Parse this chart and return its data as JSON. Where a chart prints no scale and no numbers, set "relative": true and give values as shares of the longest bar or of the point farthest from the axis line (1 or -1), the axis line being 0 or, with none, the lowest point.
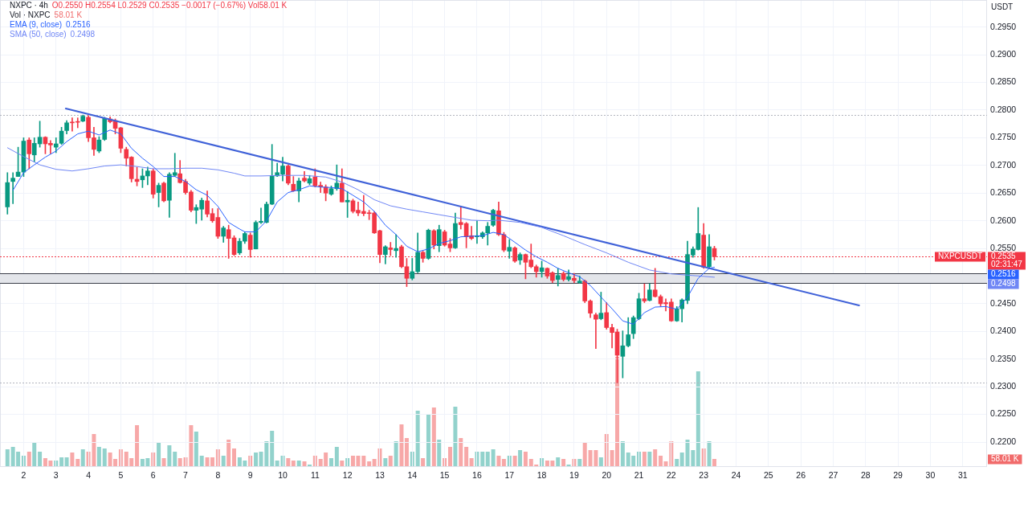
{
  "chart_data": [
    {
      "type": "candlestick",
      "title": "NXPC · 4h",
      "subtitle": "O0.2550 H0.2554 L0.2529 C0.2535 −0.0017 (−0.67%) Vol58.01 K",
      "ylabel": "USDT",
      "x": [
        1.5,
        1.67,
        1.83,
        2,
        2.17,
        2.33,
        2.5,
        2.67,
        2.83,
        3,
        3.17,
        3.33,
        3.5,
        3.67,
        3.83,
        4,
        4.17,
        4.33,
        4.5,
        4.67,
        4.83,
        5,
        5.17,
        5.33,
        5.5,
        5.67,
        5.83,
        6,
        6.17,
        6.33,
        6.5,
        6.67,
        6.83,
        7,
        7.17,
        7.33,
        7.5,
        7.67,
        7.83,
        8,
        8.17,
        8.33,
        8.5,
        8.67,
        8.83,
        9,
        9.17,
        9.33,
        9.5,
        9.67,
        9.83,
        10,
        10.17,
        10.33,
        10.5,
        10.67,
        10.83,
        11,
        11.17,
        11.33,
        11.5,
        11.67,
        11.83,
        12,
        12.17,
        12.33,
        12.5,
        12.67,
        12.83,
        13,
        13.17,
        13.33,
        13.5,
        13.67,
        13.83,
        14,
        14.17,
        14.33,
        14.5,
        14.67,
        14.83,
        15,
        15.17,
        15.33,
        15.5,
        15.67,
        15.83,
        16,
        16.17,
        16.33,
        16.5,
        16.67,
        16.83,
        17,
        17.17,
        17.33,
        17.5,
        17.67,
        17.83,
        18,
        18.17,
        18.33,
        18.5,
        18.67,
        18.83,
        19,
        19.17,
        19.33,
        19.5,
        19.67,
        19.83,
        20,
        20.17,
        20.33,
        20.5,
        20.67,
        20.83,
        21,
        21.17,
        21.33,
        21.5,
        21.67,
        21.83,
        22,
        22.17,
        22.33,
        22.5,
        22.67,
        22.83,
        23,
        23.17,
        23.33
      ],
      "xlim": [
        1.27,
        31.75
      ],
      "xticks": [
        2,
        3,
        4,
        5,
        6,
        7,
        8,
        9,
        10,
        11,
        12,
        13,
        14,
        15,
        16,
        17,
        18,
        19,
        20,
        21,
        22,
        23,
        24,
        25,
        26,
        27,
        28,
        29,
        30,
        31
      ],
      "ylim": [
        0.2155,
        0.2999
      ],
      "yticks": [
        {
          "value": 0.22,
          "label": "0.2200"
        },
        {
          "value": 0.225,
          "label": "0.2250"
        },
        {
          "value": 0.23,
          "label": "0.2300"
        },
        {
          "value": 0.235,
          "label": "0.2350"
        },
        {
          "value": 0.24,
          "label": "0.2400"
        },
        {
          "value": 0.245,
          "label": "0.2450"
        },
        {
          "value": 0.255,
          "label": "0.2550"
        },
        {
          "value": 0.26,
          "label": "0.2600"
        },
        {
          "value": 0.265,
          "label": "0.2650"
        },
        {
          "value": 0.27,
          "label": "0.2700"
        },
        {
          "value": 0.275,
          "label": "0.2750"
        },
        {
          "value": 0.28,
          "label": "0.2800"
        },
        {
          "value": 0.285,
          "label": "0.2850"
        },
        {
          "value": 0.29,
          "label": "0.2900"
        },
        {
          "value": 0.295,
          "label": "0.2950"
        }
      ],
      "ohlc": [
        [
          0.2625,
          0.2687,
          0.2612,
          0.2669
        ],
        [
          0.2671,
          0.2687,
          0.2631,
          0.2677
        ],
        [
          0.268,
          0.2733,
          0.268,
          0.2688
        ],
        [
          0.2688,
          0.275,
          0.268,
          0.2744
        ],
        [
          0.2746,
          0.275,
          0.2694,
          0.2721
        ],
        [
          0.2719,
          0.275,
          0.2706,
          0.274
        ],
        [
          0.2739,
          0.278,
          0.2733,
          0.2751
        ],
        [
          0.2751,
          0.2752,
          0.2721,
          0.2739
        ],
        [
          0.274,
          0.2745,
          0.2721,
          0.2737
        ],
        [
          0.2733,
          0.275,
          0.2723,
          0.2739
        ],
        [
          0.274,
          0.2769,
          0.2738,
          0.2762
        ],
        [
          0.2763,
          0.2781,
          0.2757,
          0.2777
        ],
        [
          0.2778,
          0.2786,
          0.2762,
          0.2777
        ],
        [
          0.2779,
          0.2786,
          0.2768,
          0.2778
        ],
        [
          0.278,
          0.2791,
          0.2779,
          0.2789
        ],
        [
          0.2787,
          0.279,
          0.2743,
          0.275
        ],
        [
          0.275,
          0.2769,
          0.2718,
          0.2729
        ],
        [
          0.2726,
          0.2752,
          0.2723,
          0.2746
        ],
        [
          0.2747,
          0.2787,
          0.2745,
          0.2785
        ],
        [
          0.2784,
          0.2788,
          0.2777,
          0.2779
        ],
        [
          0.2781,
          0.2784,
          0.2757,
          0.2767
        ],
        [
          0.2768,
          0.2769,
          0.2723,
          0.2731
        ],
        [
          0.2729,
          0.2733,
          0.2699,
          0.2713
        ],
        [
          0.2715,
          0.2716,
          0.267,
          0.2676
        ],
        [
          0.2675,
          0.2697,
          0.2663,
          0.2671
        ],
        [
          0.2674,
          0.2694,
          0.266,
          0.2681
        ],
        [
          0.2681,
          0.2697,
          0.2665,
          0.269
        ],
        [
          0.269,
          0.2694,
          0.2641,
          0.2648
        ],
        [
          0.2651,
          0.2668,
          0.2625,
          0.2664
        ],
        [
          0.2668,
          0.267,
          0.2634,
          0.2636
        ],
        [
          0.2637,
          0.2687,
          0.2606,
          0.2684
        ],
        [
          0.2682,
          0.2722,
          0.268,
          0.2687
        ],
        [
          0.2685,
          0.2709,
          0.2668,
          0.2669
        ],
        [
          0.2671,
          0.2675,
          0.2648,
          0.2651
        ],
        [
          0.2652,
          0.2655,
          0.2616,
          0.2619
        ],
        [
          0.2619,
          0.2629,
          0.2595,
          0.2624
        ],
        [
          0.2621,
          0.2641,
          0.2601,
          0.2637
        ],
        [
          0.2636,
          0.2654,
          0.2607,
          0.2612
        ],
        [
          0.2613,
          0.2622,
          0.2597,
          0.26
        ],
        [
          0.2606,
          0.2622,
          0.2568,
          0.2572
        ],
        [
          0.2572,
          0.259,
          0.2561,
          0.2587
        ],
        [
          0.2584,
          0.2592,
          0.2532,
          0.2568
        ],
        [
          0.2569,
          0.2573,
          0.2537,
          0.2539
        ],
        [
          0.2542,
          0.2568,
          0.2539,
          0.2563
        ],
        [
          0.2563,
          0.258,
          0.2559,
          0.2577
        ],
        [
          0.2574,
          0.2578,
          0.2534,
          0.2548
        ],
        [
          0.2549,
          0.26,
          0.2549,
          0.2597
        ],
        [
          0.2597,
          0.2623,
          0.2595,
          0.2599
        ],
        [
          0.2597,
          0.2634,
          0.2596,
          0.263
        ],
        [
          0.263,
          0.2738,
          0.2629,
          0.2681
        ],
        [
          0.2681,
          0.2704,
          0.268,
          0.2687
        ],
        [
          0.2684,
          0.2715,
          0.2672,
          0.2699
        ],
        [
          0.2699,
          0.2701,
          0.2665,
          0.2668
        ],
        [
          0.2666,
          0.268,
          0.2653,
          0.2654
        ],
        [
          0.2654,
          0.2677,
          0.2634,
          0.2672
        ],
        [
          0.2677,
          0.2689,
          0.267,
          0.2672
        ],
        [
          0.2668,
          0.2682,
          0.2665,
          0.2676
        ],
        [
          0.2679,
          0.2694,
          0.2661,
          0.2663
        ],
        [
          0.2664,
          0.267,
          0.2651,
          0.2661
        ],
        [
          0.2661,
          0.2665,
          0.2636,
          0.265
        ],
        [
          0.2648,
          0.2663,
          0.2646,
          0.2658
        ],
        [
          0.2658,
          0.2701,
          0.2655,
          0.2668
        ],
        [
          0.2668,
          0.2694,
          0.2634,
          0.2634
        ],
        [
          0.2634,
          0.2653,
          0.2606,
          0.2637
        ],
        [
          0.2636,
          0.2639,
          0.2614,
          0.2617
        ],
        [
          0.2619,
          0.2634,
          0.2609,
          0.2614
        ],
        [
          0.2617,
          0.2646,
          0.2609,
          0.2613
        ],
        [
          0.2614,
          0.2619,
          0.2602,
          0.2613
        ],
        [
          0.2614,
          0.2617,
          0.2577,
          0.2578
        ],
        [
          0.2582,
          0.2583,
          0.2524,
          0.2539
        ],
        [
          0.2539,
          0.2555,
          0.2522,
          0.2553
        ],
        [
          0.2551,
          0.2561,
          0.2537,
          0.2548
        ],
        [
          0.2546,
          0.2575,
          0.2534,
          0.255
        ],
        [
          0.2553,
          0.2556,
          0.2515,
          0.2517
        ],
        [
          0.2517,
          0.2532,
          0.2481,
          0.2496
        ],
        [
          0.2496,
          0.2532,
          0.2493,
          0.2508
        ],
        [
          0.2508,
          0.2578,
          0.2506,
          0.2543
        ],
        [
          0.2543,
          0.2545,
          0.2525,
          0.2532
        ],
        [
          0.2532,
          0.2585,
          0.253,
          0.2583
        ],
        [
          0.2582,
          0.2584,
          0.2549,
          0.2556
        ],
        [
          0.2555,
          0.2592,
          0.2544,
          0.2584
        ],
        [
          0.258,
          0.2583,
          0.2554,
          0.2556
        ],
        [
          0.2558,
          0.2568,
          0.2544,
          0.2551
        ],
        [
          0.2551,
          0.2614,
          0.255,
          0.2595
        ],
        [
          0.2597,
          0.2626,
          0.2585,
          0.2593
        ],
        [
          0.2595,
          0.2597,
          0.2551,
          0.2571
        ],
        [
          0.2573,
          0.259,
          0.2566,
          0.2568
        ],
        [
          0.2571,
          0.26,
          0.2559,
          0.2573
        ],
        [
          0.2571,
          0.258,
          0.2568,
          0.2578
        ],
        [
          0.2578,
          0.2597,
          0.2556,
          0.259
        ],
        [
          0.2592,
          0.2621,
          0.259,
          0.2619
        ],
        [
          0.2618,
          0.2634,
          0.2573,
          0.2575
        ],
        [
          0.2575,
          0.2579,
          0.2544,
          0.2547
        ],
        [
          0.2545,
          0.2566,
          0.2532,
          0.2552
        ],
        [
          0.2551,
          0.2553,
          0.2525,
          0.2527
        ],
        [
          0.2529,
          0.2542,
          0.2521,
          0.2539
        ],
        [
          0.2539,
          0.254,
          0.2495,
          0.2525
        ],
        [
          0.2529,
          0.2558,
          0.2515,
          0.2517
        ],
        [
          0.2517,
          0.252,
          0.2498,
          0.2508
        ],
        [
          0.2508,
          0.2527,
          0.2498,
          0.2515
        ],
        [
          0.2514,
          0.2515,
          0.2496,
          0.25
        ],
        [
          0.2506,
          0.2508,
          0.2488,
          0.2492
        ],
        [
          0.2494,
          0.2514,
          0.2482,
          0.2501
        ],
        [
          0.2505,
          0.2508,
          0.2491,
          0.2494
        ],
        [
          0.2494,
          0.2511,
          0.2491,
          0.2499
        ],
        [
          0.2496,
          0.2505,
          0.2488,
          0.2492
        ],
        [
          0.2488,
          0.25,
          0.2487,
          0.2491
        ],
        [
          0.2491,
          0.2493,
          0.2452,
          0.2455
        ],
        [
          0.2455,
          0.2457,
          0.2425,
          0.2433
        ],
        [
          0.243,
          0.2433,
          0.2369,
          0.2422
        ],
        [
          0.2423,
          0.2471,
          0.2421,
          0.2433
        ],
        [
          0.2434,
          0.2452,
          0.2404,
          0.2407
        ],
        [
          0.2407,
          0.2413,
          0.237,
          0.2398
        ],
        [
          0.2399,
          0.2404,
          0.2307,
          0.2357
        ],
        [
          0.2355,
          0.2401,
          0.2316,
          0.2374
        ],
        [
          0.2374,
          0.2425,
          0.2372,
          0.2394
        ],
        [
          0.2396,
          0.2428,
          0.2387,
          0.2425
        ],
        [
          0.2423,
          0.2469,
          0.2421,
          0.2459
        ],
        [
          0.2459,
          0.2486,
          0.2452,
          0.2455
        ],
        [
          0.2456,
          0.2486,
          0.2455,
          0.2475
        ],
        [
          0.2475,
          0.2514,
          0.2462,
          0.2463
        ],
        [
          0.2463,
          0.2466,
          0.2445,
          0.245
        ],
        [
          0.2452,
          0.2459,
          0.2437,
          0.245
        ],
        [
          0.2453,
          0.2459,
          0.2418,
          0.2419
        ],
        [
          0.2419,
          0.2445,
          0.2418,
          0.2441
        ],
        [
          0.2441,
          0.2459,
          0.2417,
          0.2457
        ],
        [
          0.2456,
          0.2563,
          0.245,
          0.2539
        ],
        [
          0.2538,
          0.2553,
          0.2534,
          0.2549
        ],
        [
          0.2548,
          0.2624,
          0.2547,
          0.2577
        ],
        [
          0.2574,
          0.2595,
          0.2514,
          0.2516
        ],
        [
          0.2517,
          0.2575,
          0.2513,
          0.2553
        ],
        [
          0.255,
          0.2554,
          0.2529,
          0.2535
        ]
      ],
      "colors": [
        "#089981",
        "#089981",
        "#089981",
        "#089981",
        "#f23645",
        "#089981",
        "#089981",
        "#f23645",
        "#f23645",
        "#089981",
        "#089981",
        "#089981",
        "#f23645",
        "#f23645",
        "#089981",
        "#f23645",
        "#f23645",
        "#089981",
        "#089981",
        "#f23645",
        "#f23645",
        "#f23645",
        "#f23645",
        "#f23645",
        "#f23645",
        "#089981",
        "#089981",
        "#f23645",
        "#089981",
        "#f23645",
        "#089981",
        "#089981",
        "#f23645",
        "#f23645",
        "#f23645",
        "#089981",
        "#089981",
        "#f23645",
        "#f23645",
        "#f23645",
        "#089981",
        "#f23645",
        "#f23645",
        "#089981",
        "#089981",
        "#f23645",
        "#089981",
        "#089981",
        "#089981",
        "#089981",
        "#089981",
        "#089981",
        "#f23645",
        "#f23645",
        "#089981",
        "#f23645",
        "#089981",
        "#f23645",
        "#f23645",
        "#f23645",
        "#089981",
        "#089981",
        "#f23645",
        "#089981",
        "#f23645",
        "#f23645",
        "#f23645",
        "#f23645",
        "#f23645",
        "#f23645",
        "#089981",
        "#f23645",
        "#089981",
        "#f23645",
        "#f23645",
        "#089981",
        "#089981",
        "#f23645",
        "#089981",
        "#f23645",
        "#089981",
        "#f23645",
        "#f23645",
        "#089981",
        "#f23645",
        "#f23645",
        "#f23645",
        "#089981",
        "#089981",
        "#089981",
        "#089981",
        "#f23645",
        "#f23645",
        "#089981",
        "#f23645",
        "#089981",
        "#f23645",
        "#f23645",
        "#f23645",
        "#089981",
        "#f23645",
        "#f23645",
        "#089981",
        "#f23645",
        "#089981",
        "#f23645",
        "#089981",
        "#f23645",
        "#f23645",
        "#f23645",
        "#089981",
        "#f23645",
        "#f23645",
        "#f23645",
        "#089981",
        "#089981",
        "#089981",
        "#089981",
        "#f23645",
        "#089981",
        "#f23645",
        "#f23645",
        "#f23645",
        "#f23645",
        "#089981",
        "#089981",
        "#089981",
        "#089981",
        "#089981",
        "#f23645",
        "#089981",
        "#f23645"
      ],
      "series": [
        {
          "type": "line",
          "name": "EMA (9, close)",
          "color": "#2962ff",
          "x": [
            1.67,
            2,
            2.33,
            2.67,
            3,
            3.33,
            3.67,
            4,
            4.33,
            4.67,
            5,
            5.33,
            5.67,
            6,
            6.33,
            6.67,
            7,
            7.33,
            7.67,
            8,
            8.33,
            8.67,
            8.83,
            9.17,
            9.5,
            9.83,
            10.17,
            10.5,
            10.83,
            11.17,
            11.5,
            11.83,
            12.17,
            12.5,
            12.83,
            13.17,
            13.5,
            13.83,
            14.17,
            14.5,
            14.83,
            15.17,
            15.5,
            15.83,
            16.17,
            16.5,
            16.83,
            17.17,
            17.5,
            17.83,
            18.17,
            18.5,
            18.83,
            19.17,
            19.5,
            19.83,
            20.17,
            20.5,
            20.83,
            21.17,
            21.5,
            21.83,
            22.17,
            22.5,
            22.83,
            23.17,
            23.33
          ],
          "values": [
            0.2655,
            0.2687,
            0.2701,
            0.2715,
            0.2726,
            0.2743,
            0.2757,
            0.2762,
            0.2755,
            0.2764,
            0.2757,
            0.2731,
            0.2713,
            0.2698,
            0.268,
            0.268,
            0.2671,
            0.2656,
            0.2646,
            0.2626,
            0.2597,
            0.2585,
            0.258,
            0.258,
            0.26,
            0.2634,
            0.2651,
            0.2656,
            0.2663,
            0.2661,
            0.266,
            0.2658,
            0.2646,
            0.2634,
            0.2617,
            0.2592,
            0.2575,
            0.2554,
            0.2544,
            0.2549,
            0.2559,
            0.2564,
            0.2571,
            0.2572,
            0.2573,
            0.2579,
            0.2575,
            0.2561,
            0.2547,
            0.2535,
            0.2525,
            0.2514,
            0.2506,
            0.2499,
            0.2483,
            0.2462,
            0.2441,
            0.2419,
            0.2413,
            0.2434,
            0.2444,
            0.2445,
            0.244,
            0.2462,
            0.2496,
            0.2514,
            0.2516
          ]
        },
        {
          "type": "line",
          "name": "SMA (50, close)",
          "color": "#6f86f5",
          "x": [
            1.5,
            2,
            2.5,
            3,
            3.5,
            4,
            4.5,
            5,
            5.5,
            6,
            6.5,
            7,
            7.5,
            8,
            8.5,
            8.83,
            9.33,
            10,
            10.67,
            11.33,
            11.83,
            12.33,
            12.83,
            13.33,
            13.83,
            14.33,
            14.83,
            15.33,
            15.83,
            16.33,
            16.67,
            17.33,
            18,
            18.67,
            19.33,
            20,
            20.67,
            21.33,
            22,
            22.67,
            23.33
          ],
          "values": [
            0.2732,
            0.2716,
            0.2701,
            0.2693,
            0.269,
            0.2694,
            0.2699,
            0.2701,
            0.2698,
            0.2694,
            0.2694,
            0.2695,
            0.2695,
            0.2692,
            0.2686,
            0.2681,
            0.2681,
            0.2682,
            0.2682,
            0.2679,
            0.267,
            0.2656,
            0.2638,
            0.2627,
            0.2621,
            0.2616,
            0.2611,
            0.2606,
            0.2601,
            0.26,
            0.2601,
            0.2597,
            0.2588,
            0.2573,
            0.2557,
            0.2542,
            0.2525,
            0.2511,
            0.2504,
            0.2501,
            0.2498
          ]
        },
        {
          "type": "line",
          "color": "#3f61d8",
          "x": [
            3.3,
            27.8
          ],
          "values": [
            0.2803,
            0.2447
          ]
        }
      ],
      "annotations": [
        "0.2516",
        "0.2498"
      ],
      "bands": [
        {
          "axis": "y",
          "from": 0.2487,
          "to": 0.2505,
          "color": "#e3e5ea"
        }
      ],
      "ref_lines": [
        {
          "axis": "y",
          "value": 0.2535,
          "label": "NXPCUSDT\n0.2535\n02:31:47",
          "color": "#f23645",
          "line_style": "dotted"
        },
        {
          "axis": "y",
          "value": 0.2791,
          "color": "#b2b5be",
          "line_style": "dotted"
        },
        {
          "axis": "y",
          "value": 0.2307,
          "color": "#b2b5be",
          "line_style": "dotted"
        }
      ],
      "legend": "top left",
      "grid": true
    },
    {
      "type": "bar",
      "relative": true,
      "x": [
        1.5,
        1.67,
        1.83,
        2,
        2.17,
        2.33,
        2.5,
        2.67,
        2.83,
        3,
        3.17,
        3.33,
        3.5,
        3.67,
        3.83,
        4,
        4.17,
        4.33,
        4.5,
        4.67,
        4.83,
        5,
        5.17,
        5.33,
        5.5,
        5.67,
        5.83,
        6,
        6.17,
        6.33,
        6.5,
        6.67,
        6.83,
        7,
        7.17,
        7.33,
        7.5,
        7.67,
        7.83,
        8,
        8.17,
        8.33,
        8.5,
        8.67,
        8.83,
        9,
        9.17,
        9.33,
        9.5,
        9.67,
        9.83,
        10,
        10.17,
        10.33,
        10.5,
        10.67,
        10.83,
        11,
        11.17,
        11.33,
        11.5,
        11.67,
        11.83,
        12,
        12.17,
        12.33,
        12.5,
        12.67,
        12.83,
        13,
        13.17,
        13.33,
        13.5,
        13.67,
        13.83,
        14,
        14.17,
        14.33,
        14.5,
        14.67,
        14.83,
        15,
        15.17,
        15.33,
        15.5,
        15.67,
        15.83,
        16,
        16.17,
        16.33,
        16.5,
        16.67,
        16.83,
        17,
        17.17,
        17.33,
        17.5,
        17.67,
        17.83,
        18,
        18.17,
        18.33,
        18.5,
        18.67,
        18.83,
        19,
        19.17,
        19.33,
        19.5,
        19.67,
        19.83,
        20,
        20.17,
        20.33,
        20.5,
        20.67,
        20.83,
        21,
        21.17,
        21.33,
        21.5,
        21.67,
        21.83,
        22,
        22.17,
        22.33,
        22.5,
        22.67,
        22.83,
        23,
        23.17,
        23.33
      ],
      "xlim": [
        1.27,
        31.75
      ],
      "tick_labels": false,
      "legend": "top left",
      "series": [
        {
          "name": "Vol · NXPC",
          "values": [
            0.16,
            0.18,
            0.14,
            0.1,
            0.14,
            0.22,
            0.14,
            0.08,
            0.06,
            0.06,
            0.09,
            0.09,
            0.13,
            0.07,
            0.16,
            0.14,
            0.3,
            0.18,
            0.17,
            0.13,
            0.07,
            0.16,
            0.14,
            0.08,
            0.38,
            0.07,
            0.08,
            0.13,
            0.22,
            0.08,
            0.2,
            0.14,
            0.08,
            0.09,
            0.38,
            0.32,
            0.1,
            0.09,
            0.09,
            0.16,
            0.1,
            0.25,
            0.17,
            0.09,
            0.06,
            0.1,
            0.13,
            0.14,
            0.23,
            0.33,
            0.06,
            0.1,
            0.08,
            0.06,
            0.06,
            0.05,
            0.02,
            0.1,
            0.07,
            0.13,
            0.08,
            0.18,
            0.06,
            0.08,
            0.1,
            0.1,
            0.1,
            0.05,
            0.07,
            0.17,
            0.08,
            0.1,
            0.23,
            0.39,
            0.26,
            0.14,
            0.51,
            0.08,
            0.48,
            0.54,
            0.25,
            0.08,
            0.18,
            0.55,
            0.26,
            0.18,
            0.08,
            0.14,
            0.14,
            0.14,
            0.16,
            0.1,
            0.07,
            0.1,
            0.1,
            0.15,
            0.14,
            0.07,
            0.02,
            0.08,
            0.06,
            0.06,
            0.09,
            0.07,
            0.02,
            0.07,
            0.07,
            0.22,
            0.15,
            0.15,
            0.09,
            0.3,
            0.15,
            1,
            0.23,
            0.13,
            0.1,
            0.14,
            0.14,
            0.14,
            0.16,
            0.1,
            0.05,
            0.23,
            0.07,
            0.13,
            0.25,
            0.15,
            0.87,
            0.17,
            0.23,
            0.07
          ],
          "colors": [
            "#92d2cc",
            "#92d2cc",
            "#92d2cc",
            "#92d2cc",
            "#f7a8a8",
            "#92d2cc",
            "#92d2cc",
            "#f7a8a8",
            "#f7a8a8",
            "#92d2cc",
            "#92d2cc",
            "#92d2cc",
            "#f7a8a8",
            "#f7a8a8",
            "#92d2cc",
            "#f7a8a8",
            "#f7a8a8",
            "#92d2cc",
            "#92d2cc",
            "#f7a8a8",
            "#f7a8a8",
            "#f7a8a8",
            "#f7a8a8",
            "#f7a8a8",
            "#f7a8a8",
            "#92d2cc",
            "#92d2cc",
            "#f7a8a8",
            "#92d2cc",
            "#f7a8a8",
            "#92d2cc",
            "#92d2cc",
            "#f7a8a8",
            "#f7a8a8",
            "#f7a8a8",
            "#92d2cc",
            "#92d2cc",
            "#f7a8a8",
            "#f7a8a8",
            "#f7a8a8",
            "#92d2cc",
            "#f7a8a8",
            "#f7a8a8",
            "#92d2cc",
            "#92d2cc",
            "#f7a8a8",
            "#92d2cc",
            "#92d2cc",
            "#92d2cc",
            "#92d2cc",
            "#92d2cc",
            "#92d2cc",
            "#f7a8a8",
            "#f7a8a8",
            "#92d2cc",
            "#f7a8a8",
            "#92d2cc",
            "#f7a8a8",
            "#f7a8a8",
            "#f7a8a8",
            "#92d2cc",
            "#92d2cc",
            "#f7a8a8",
            "#92d2cc",
            "#f7a8a8",
            "#f7a8a8",
            "#f7a8a8",
            "#f7a8a8",
            "#f7a8a8",
            "#f7a8a8",
            "#92d2cc",
            "#f7a8a8",
            "#92d2cc",
            "#f7a8a8",
            "#f7a8a8",
            "#92d2cc",
            "#92d2cc",
            "#f7a8a8",
            "#92d2cc",
            "#f7a8a8",
            "#92d2cc",
            "#f7a8a8",
            "#f7a8a8",
            "#92d2cc",
            "#f7a8a8",
            "#f7a8a8",
            "#f7a8a8",
            "#92d2cc",
            "#92d2cc",
            "#92d2cc",
            "#92d2cc",
            "#f7a8a8",
            "#f7a8a8",
            "#92d2cc",
            "#f7a8a8",
            "#92d2cc",
            "#f7a8a8",
            "#f7a8a8",
            "#f7a8a8",
            "#92d2cc",
            "#f7a8a8",
            "#f7a8a8",
            "#92d2cc",
            "#f7a8a8",
            "#92d2cc",
            "#f7a8a8",
            "#92d2cc",
            "#f7a8a8",
            "#f7a8a8",
            "#f7a8a8",
            "#92d2cc",
            "#f7a8a8",
            "#f7a8a8",
            "#f7a8a8",
            "#92d2cc",
            "#92d2cc",
            "#92d2cc",
            "#92d2cc",
            "#f7a8a8",
            "#92d2cc",
            "#f7a8a8",
            "#f7a8a8",
            "#f7a8a8",
            "#f7a8a8",
            "#92d2cc",
            "#92d2cc",
            "#92d2cc",
            "#92d2cc",
            "#92d2cc",
            "#f7a8a8",
            "#92d2cc",
            "#f7a8a8"
          ]
        }
      ],
      "annotations": [
        "58.01 K"
      ]
    }
  ]
}
